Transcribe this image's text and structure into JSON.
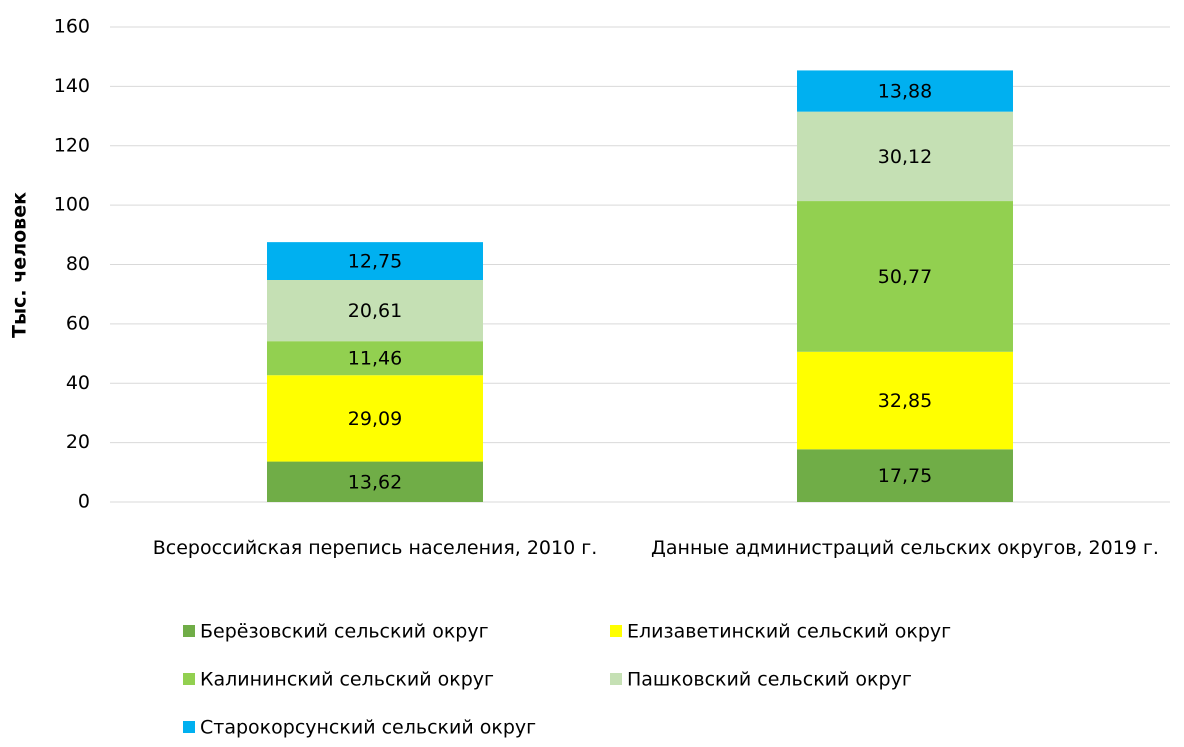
{
  "chart_data": {
    "type": "stacked_bar",
    "y_label": "Тыс. человек",
    "categories": [
      "Всероссийская перепись населения, 2010 г.",
      "Данные администраций сельских округов, 2019 г."
    ],
    "series": [
      {
        "name": "Берёзовский сельский округ",
        "color": "#70ad47",
        "values": [
          13.62,
          17.75
        ],
        "value_labels": [
          "13,62",
          "17,75"
        ]
      },
      {
        "name": "Елизаветинский сельский округ",
        "color": "#ffff00",
        "values": [
          29.09,
          32.85
        ],
        "value_labels": [
          "29,09",
          "32,85"
        ]
      },
      {
        "name": "Калининский сельский округ",
        "color": "#92d050",
        "values": [
          11.46,
          50.77
        ],
        "value_labels": [
          "11,46",
          "50,77"
        ]
      },
      {
        "name": "Пашковский сельский округ",
        "color": "#c5e0b4",
        "values": [
          20.61,
          30.12
        ],
        "value_labels": [
          "20,61",
          "30,12"
        ]
      },
      {
        "name": "Старокорсунский сельский округ",
        "color": "#00b0f0",
        "values": [
          12.75,
          13.88
        ],
        "value_labels": [
          "12,75",
          "13,88"
        ]
      }
    ],
    "ylim": [
      0,
      160
    ],
    "yticks": [
      0,
      20,
      40,
      60,
      80,
      100,
      120,
      140,
      160
    ],
    "grid": true,
    "legend": "bottom"
  }
}
